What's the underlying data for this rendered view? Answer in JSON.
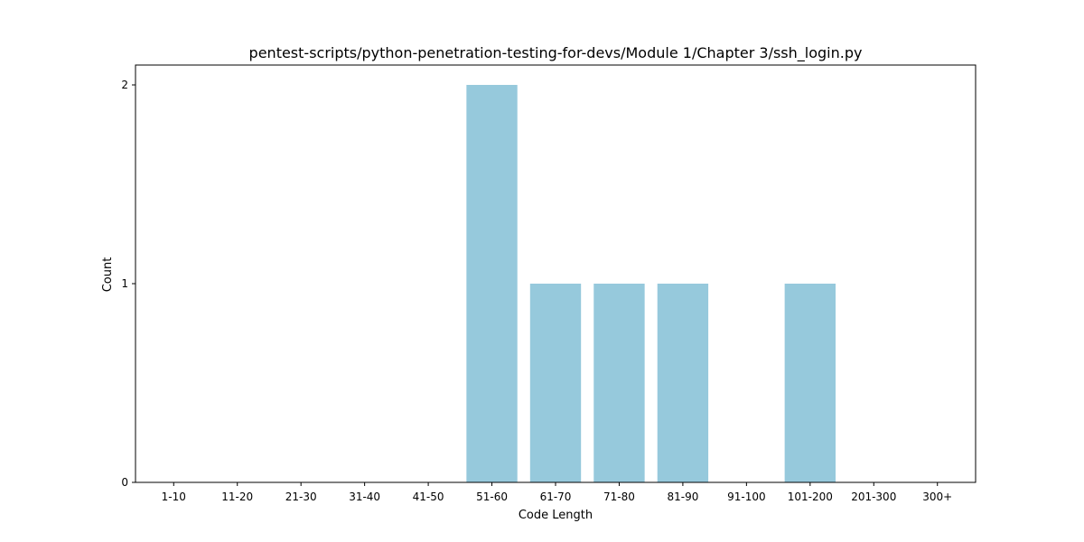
{
  "chart_data": {
    "type": "bar",
    "title": "pentest-scripts/python-penetration-testing-for-devs/Module 1/Chapter 3/ssh_login.py",
    "xlabel": "Code Length",
    "ylabel": "Count",
    "categories": [
      "1-10",
      "11-20",
      "21-30",
      "31-40",
      "41-50",
      "51-60",
      "61-70",
      "71-80",
      "81-90",
      "91-100",
      "101-200",
      "201-300",
      "300+"
    ],
    "values": [
      0,
      0,
      0,
      0,
      0,
      2,
      1,
      1,
      1,
      0,
      1,
      0,
      0
    ],
    "ylim": [
      0,
      2.1
    ],
    "yticks": [
      0,
      1,
      2
    ],
    "grid": false,
    "bar_color": "#96c9dc"
  }
}
